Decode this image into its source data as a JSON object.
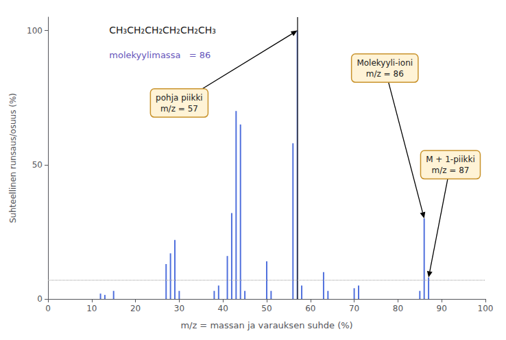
{
  "chart_data": {
    "type": "bar",
    "xlabel": "m/z = massan ja varauksen suhde (%)",
    "ylabel": "Suhteellinen runsaus/osuus (%)",
    "xlim": [
      0,
      100
    ],
    "ylim": [
      0,
      105
    ],
    "xticks": [
      0,
      10,
      20,
      30,
      40,
      50,
      60,
      70,
      80,
      90,
      100
    ],
    "yticks": [
      0,
      50,
      100
    ],
    "grid": false,
    "x": [
      12,
      13,
      15,
      27,
      28,
      29,
      30,
      38,
      39,
      41,
      42,
      43,
      44,
      45,
      50,
      51,
      56,
      57,
      58,
      63,
      64,
      70,
      71,
      85,
      86,
      87
    ],
    "values": [
      2,
      1.5,
      3,
      13,
      17,
      22,
      3,
      3,
      5,
      16,
      32,
      70,
      65,
      3,
      14,
      3,
      58,
      100,
      5,
      10,
      3,
      4,
      5,
      3,
      30,
      8
    ],
    "reference_lines": [
      {
        "x": 57,
        "line_style": "solid"
      },
      {
        "y": 7,
        "line_style": "dotted"
      }
    ],
    "texts": [
      "CH₃CH₂CH₂CH₂CH₂CH₃",
      "molekyylimassa   = 86"
    ],
    "annotations": [
      {
        "text": "pohja piikki\nm/z = 57",
        "x": 57,
        "y": 100
      },
      {
        "text": "Molekyyli-ioni\nm/z = 86",
        "x": 86,
        "y": 30
      },
      {
        "text": "M + 1-piikki\nm/z = 87",
        "x": 87,
        "y": 8
      }
    ]
  }
}
